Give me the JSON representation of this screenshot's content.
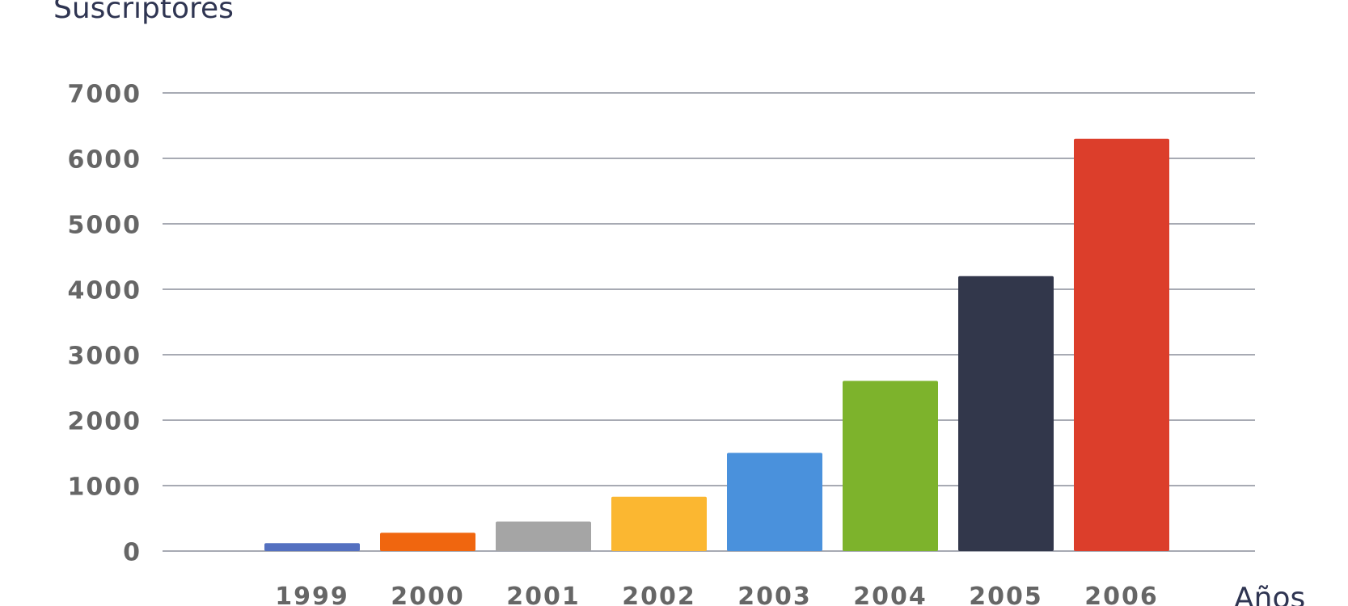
{
  "chart_data": {
    "type": "bar",
    "title": "Suscriptores",
    "x_label": "Años",
    "categories": [
      "1999",
      "2000",
      "2001",
      "2002",
      "2003",
      "2004",
      "2005",
      "2006"
    ],
    "values": [
      120,
      280,
      450,
      830,
      1500,
      2600,
      4200,
      6300
    ],
    "colors": [
      "#5470c0",
      "#f0660f",
      "#a5a5a5",
      "#fbb731",
      "#4a91dc",
      "#7db32c",
      "#32374b",
      "#dc3e2b"
    ],
    "ylim": [
      0,
      7000
    ],
    "yticks": [
      0,
      1000,
      2000,
      3000,
      4000,
      5000,
      6000,
      7000
    ],
    "grid": true
  }
}
